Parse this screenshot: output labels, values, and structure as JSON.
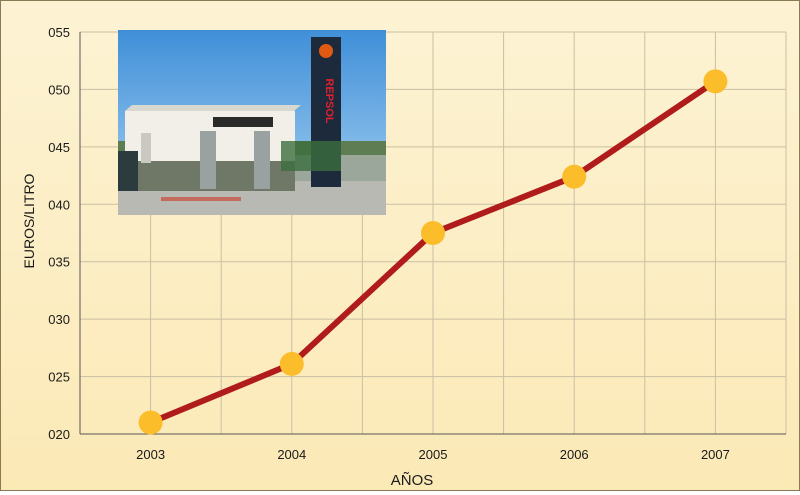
{
  "chart_data": {
    "type": "line",
    "title": "",
    "xlabel": "AÑOS",
    "ylabel": "EUROS/LITRO",
    "categories": [
      "2003",
      "2004",
      "2005",
      "2006",
      "2007"
    ],
    "series": [
      {
        "values": [
          0.21,
          0.261,
          0.375,
          0.424,
          0.507
        ]
      }
    ],
    "yticks": [
      "020",
      "025",
      "030",
      "035",
      "040",
      "045",
      "050",
      "055"
    ],
    "ylim": [
      0.2,
      0.55
    ],
    "grid": true,
    "legend": "none",
    "colors": {
      "line": "#b01c1c",
      "marker": "#fbbd2a",
      "grid": "#c9bfa4",
      "axis": "#555555"
    }
  },
  "photo": {
    "description_icon": "gas-station-photo",
    "sign_text": "REPSOL"
  }
}
